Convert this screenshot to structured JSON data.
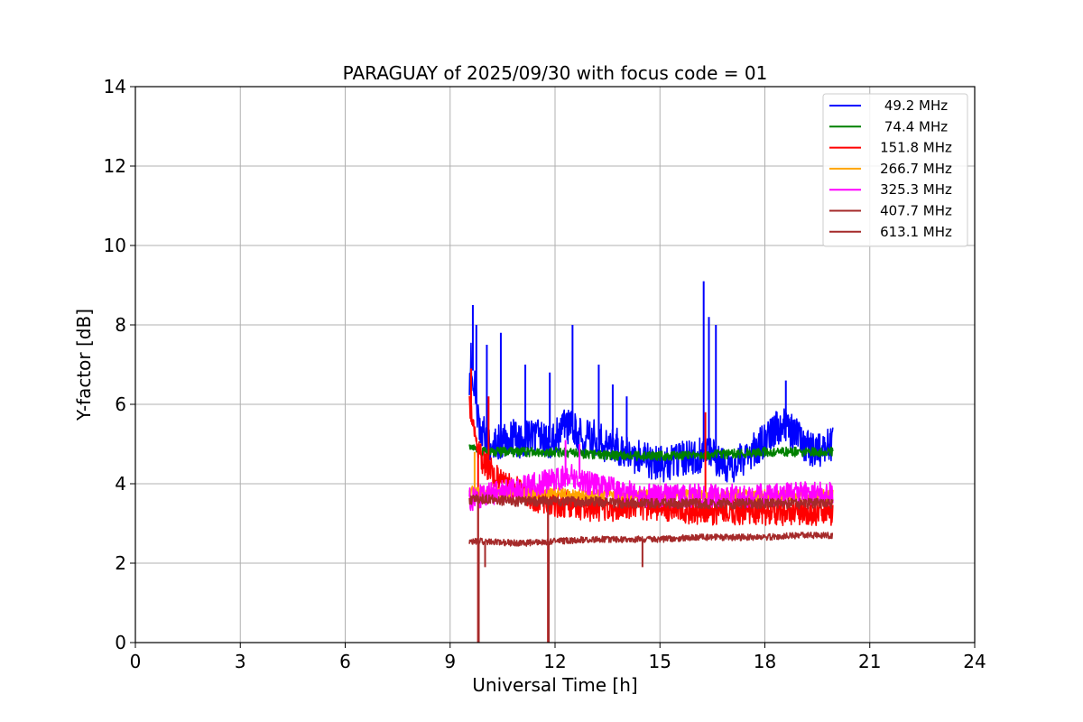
{
  "chart_data": {
    "type": "line",
    "title": "PARAGUAY of 2025/09/30 with focus code = 01",
    "xlabel": "Universal Time [h]",
    "ylabel": "Y-factor [dB]",
    "xlim": [
      0,
      24
    ],
    "ylim": [
      0,
      14
    ],
    "xticks": [
      0,
      3,
      6,
      9,
      12,
      15,
      18,
      21,
      24
    ],
    "yticks": [
      0,
      2,
      4,
      6,
      8,
      10,
      12,
      14
    ],
    "grid": true,
    "legend_position": "top-right",
    "series": [
      {
        "name": " 49.2 MHz",
        "color": "#0000ff",
        "noise": 0.45,
        "x": [
          9.55,
          9.6,
          9.7,
          9.8,
          10.0,
          10.2,
          10.5,
          10.8,
          11.0,
          11.3,
          11.6,
          11.9,
          12.2,
          12.5,
          12.8,
          13.1,
          13.4,
          13.7,
          14.0,
          14.3,
          14.6,
          14.9,
          15.2,
          15.5,
          15.8,
          16.1,
          16.3,
          16.5,
          16.8,
          17.0,
          17.3,
          17.6,
          17.9,
          18.2,
          18.5,
          18.8,
          19.1,
          19.4,
          19.7,
          19.95
        ],
        "values": [
          6.2,
          7.2,
          6.5,
          5.6,
          5.2,
          5.0,
          5.1,
          5.2,
          5.0,
          5.2,
          5.2,
          5.0,
          5.4,
          5.5,
          5.1,
          5.2,
          5.0,
          5.0,
          4.8,
          4.7,
          4.6,
          4.5,
          4.5,
          4.6,
          4.7,
          4.7,
          4.8,
          4.7,
          4.5,
          4.4,
          4.6,
          4.8,
          5.0,
          5.3,
          5.5,
          5.3,
          5.0,
          4.8,
          4.9,
          5.0
        ],
        "spikes": [
          [
            9.65,
            8.5
          ],
          [
            9.75,
            8.0
          ],
          [
            10.05,
            7.5
          ],
          [
            10.45,
            7.8
          ],
          [
            11.15,
            7.0
          ],
          [
            11.85,
            6.8
          ],
          [
            12.5,
            8.0
          ],
          [
            13.25,
            7.0
          ],
          [
            13.65,
            6.5
          ],
          [
            14.05,
            6.2
          ],
          [
            16.25,
            9.1
          ],
          [
            16.4,
            8.2
          ],
          [
            16.6,
            8.0
          ],
          [
            18.6,
            6.6
          ]
        ]
      },
      {
        "name": " 74.4 MHz",
        "color": "#008000",
        "noise": 0.12,
        "x": [
          9.55,
          10.0,
          11.0,
          12.0,
          13.0,
          14.0,
          15.0,
          16.0,
          17.0,
          18.0,
          19.0,
          19.95
        ],
        "values": [
          4.9,
          4.8,
          4.8,
          4.8,
          4.75,
          4.7,
          4.7,
          4.7,
          4.75,
          4.8,
          4.8,
          4.8
        ],
        "spikes": []
      },
      {
        "name": "151.8 MHz",
        "color": "#ff0000",
        "noise": 0.35,
        "x": [
          9.55,
          9.7,
          9.9,
          10.2,
          10.6,
          11.0,
          11.5,
          11.9,
          12.3,
          12.8,
          13.4,
          14.0,
          15.0,
          16.0,
          17.0,
          18.0,
          19.0,
          19.95
        ],
        "values": [
          6.0,
          5.2,
          4.6,
          4.3,
          4.0,
          3.8,
          3.6,
          3.5,
          3.5,
          3.4,
          3.4,
          3.4,
          3.4,
          3.3,
          3.3,
          3.3,
          3.3,
          3.3
        ],
        "spikes": [
          [
            9.6,
            6.9
          ],
          [
            10.1,
            6.2
          ],
          [
            16.3,
            5.8
          ],
          [
            9.8,
            0.0
          ],
          [
            11.8,
            0.0
          ]
        ]
      },
      {
        "name": "266.7 MHz",
        "color": "#ffa500",
        "noise": 0.15,
        "x": [
          9.55,
          10.0,
          11.0,
          12.0,
          13.0,
          14.0,
          15.0,
          16.0,
          17.0,
          18.0,
          19.0,
          19.95
        ],
        "values": [
          3.8,
          3.8,
          3.75,
          3.75,
          3.7,
          3.7,
          3.7,
          3.7,
          3.7,
          3.7,
          3.7,
          3.7
        ],
        "spikes": [
          [
            9.7,
            4.8
          ]
        ]
      },
      {
        "name": "325.3 MHz",
        "color": "#ff00ff",
        "noise": 0.3,
        "x": [
          9.55,
          10.0,
          10.5,
          11.0,
          11.5,
          12.0,
          12.5,
          13.0,
          13.5,
          14.0,
          14.5,
          15.0,
          16.0,
          17.0,
          18.0,
          19.0,
          19.95
        ],
        "values": [
          3.6,
          3.7,
          3.8,
          3.9,
          4.0,
          4.1,
          4.2,
          4.0,
          3.9,
          3.8,
          3.7,
          3.7,
          3.7,
          3.7,
          3.7,
          3.75,
          3.75
        ],
        "spikes": [
          [
            12.3,
            5.1
          ],
          [
            12.7,
            5.0
          ]
        ]
      },
      {
        "name": "407.7 MHz",
        "color": "#a52a2a",
        "noise": 0.13,
        "x": [
          9.55,
          10.0,
          11.0,
          12.0,
          13.0,
          14.0,
          15.0,
          16.0,
          17.0,
          18.0,
          19.0,
          19.95
        ],
        "values": [
          3.6,
          3.6,
          3.55,
          3.55,
          3.55,
          3.5,
          3.5,
          3.5,
          3.5,
          3.5,
          3.5,
          3.5
        ],
        "spikes": [
          [
            9.8,
            0.0
          ],
          [
            11.8,
            0.0
          ]
        ]
      },
      {
        "name": "613.1 MHz",
        "color": "#a52a2a",
        "noise": 0.08,
        "x": [
          9.55,
          10.0,
          11.0,
          12.0,
          13.0,
          14.0,
          15.0,
          16.0,
          17.0,
          18.0,
          19.0,
          19.95
        ],
        "values": [
          2.55,
          2.55,
          2.5,
          2.55,
          2.6,
          2.6,
          2.6,
          2.65,
          2.65,
          2.65,
          2.7,
          2.7
        ],
        "spikes": [
          [
            9.82,
            0.0
          ],
          [
            11.82,
            0.0
          ],
          [
            10.0,
            1.9
          ],
          [
            14.5,
            1.9
          ]
        ]
      }
    ]
  }
}
